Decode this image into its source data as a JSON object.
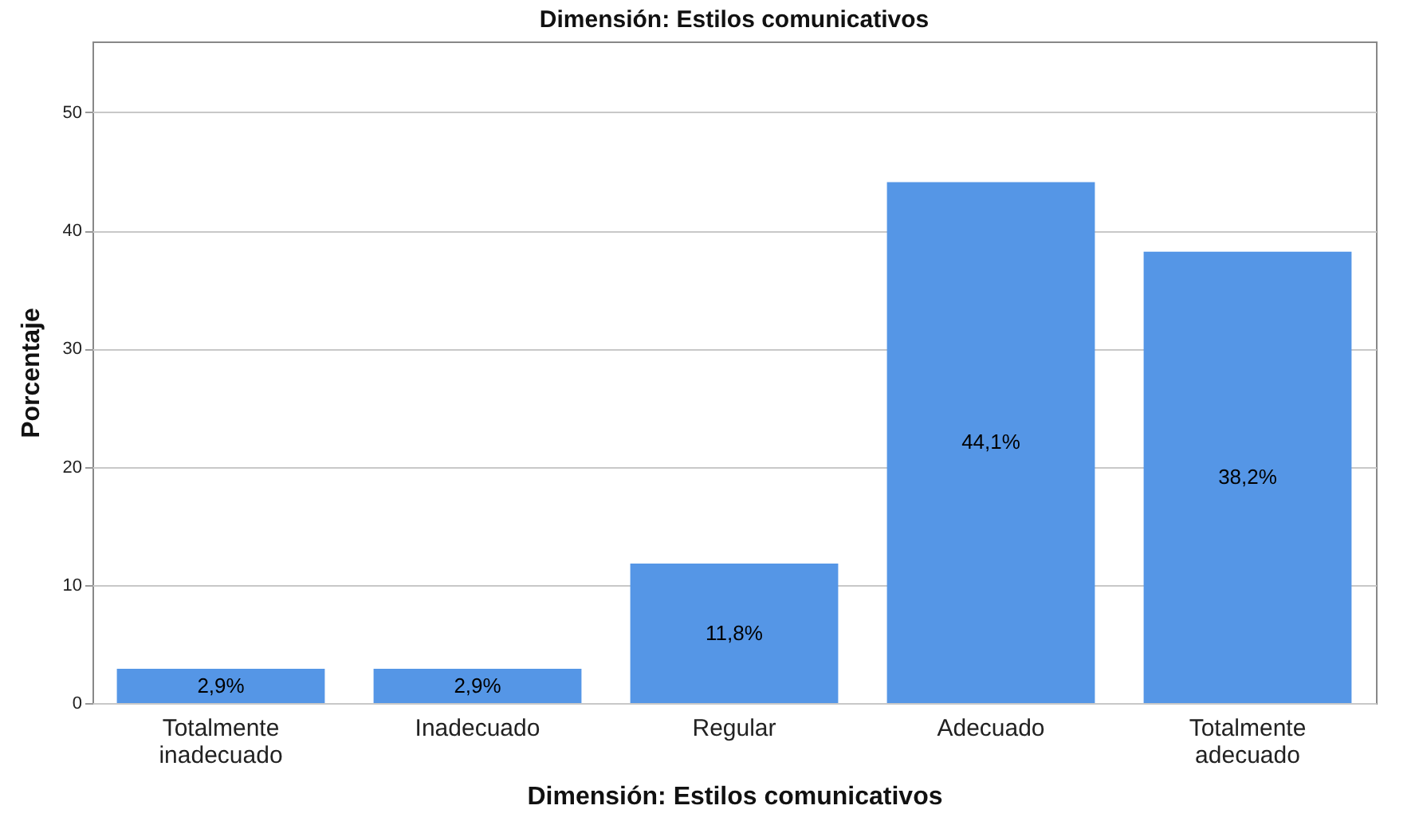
{
  "chart_data": {
    "type": "bar",
    "title": "Dimensión: Estilos comunicativos",
    "xlabel": "Dimensión: Estilos comunicativos",
    "ylabel": "Porcentaje",
    "categories": [
      "Totalmente inadecuado",
      "Inadecuado",
      "Regular",
      "Adecuado",
      "Totalmente adecuado"
    ],
    "values": [
      2.9,
      2.9,
      11.8,
      44.1,
      38.2
    ],
    "value_labels": [
      "2,9%",
      "2,9%",
      "11,8%",
      "44,1%",
      "38,2%"
    ],
    "color": "#5596e6",
    "ylim": [
      0,
      56
    ],
    "yticks": [
      0,
      10,
      20,
      30,
      40,
      50
    ],
    "grid": "y"
  }
}
